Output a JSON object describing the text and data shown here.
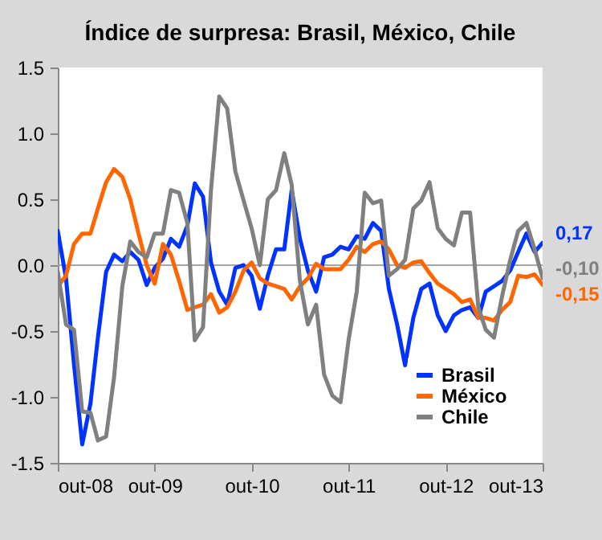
{
  "chart_data": {
    "type": "line",
    "title": "Índice de surpresa: Brasil, México, Chile",
    "x": [
      "2008-10",
      "2008-11",
      "2008-12",
      "2009-01",
      "2009-02",
      "2009-03",
      "2009-04",
      "2009-05",
      "2009-06",
      "2009-07",
      "2009-08",
      "2009-09",
      "2009-10",
      "2009-11",
      "2009-12",
      "2010-01",
      "2010-02",
      "2010-03",
      "2010-04",
      "2010-05",
      "2010-06",
      "2010-07",
      "2010-08",
      "2010-09",
      "2010-10",
      "2010-11",
      "2010-12",
      "2011-01",
      "2011-02",
      "2011-03",
      "2011-04",
      "2011-05",
      "2011-06",
      "2011-07",
      "2011-08",
      "2011-09",
      "2011-10",
      "2011-11",
      "2011-12",
      "2012-01",
      "2012-02",
      "2012-03",
      "2012-04",
      "2012-05",
      "2012-06",
      "2012-07",
      "2012-08",
      "2012-09",
      "2012-10",
      "2012-11",
      "2012-12",
      "2013-01",
      "2013-02",
      "2013-03",
      "2013-04",
      "2013-05",
      "2013-06",
      "2013-07",
      "2013-08",
      "2013-09",
      "2013-10"
    ],
    "series": [
      {
        "name": "Brasil",
        "color": "#0033ff",
        "values": [
          0.26,
          -0.1,
          -0.75,
          -1.36,
          -1.05,
          -0.55,
          -0.05,
          0.08,
          0.03,
          0.1,
          0.04,
          -0.15,
          -0.02,
          0.05,
          0.2,
          0.14,
          0.3,
          0.62,
          0.52,
          0.02,
          -0.2,
          -0.3,
          -0.02,
          0,
          -0.08,
          -0.33,
          -0.08,
          0.12,
          0.12,
          0.57,
          0.2,
          -0.04,
          -0.2,
          0.06,
          0.08,
          0.14,
          0.12,
          0.22,
          0.2,
          0.32,
          0.26,
          -0.18,
          -0.45,
          -0.76,
          -0.4,
          -0.18,
          -0.14,
          -0.38,
          -0.5,
          -0.38,
          -0.34,
          -0.32,
          -0.4,
          -0.2,
          -0.16,
          -0.12,
          -0.04,
          0.1,
          0.24,
          0.1,
          0.17
        ]
      },
      {
        "name": "México",
        "color": "#ff6600",
        "values": [
          -0.16,
          -0.08,
          0.16,
          0.24,
          0.24,
          0.43,
          0.63,
          0.73,
          0.67,
          0.5,
          0.24,
          0,
          -0.14,
          0.16,
          0.08,
          -0.12,
          -0.34,
          -0.32,
          -0.3,
          -0.22,
          -0.36,
          -0.32,
          -0.2,
          -0.04,
          0.02,
          -0.1,
          -0.14,
          -0.16,
          -0.18,
          -0.26,
          -0.16,
          -0.1,
          0.01,
          -0.03,
          -0.03,
          -0.03,
          0.04,
          0.14,
          0.1,
          0.16,
          0.18,
          0.12,
          0,
          -0.02,
          0.02,
          0.03,
          -0.06,
          -0.14,
          -0.18,
          -0.22,
          -0.28,
          -0.26,
          -0.4,
          -0.4,
          -0.42,
          -0.34,
          -0.28,
          -0.08,
          -0.09,
          -0.07,
          -0.15
        ]
      },
      {
        "name": "Chile",
        "color": "#808080",
        "values": [
          -0.05,
          -0.45,
          -0.49,
          -1.11,
          -1.12,
          -1.33,
          -1.3,
          -0.85,
          -0.16,
          0.18,
          0.1,
          0.06,
          0.24,
          0.24,
          0.57,
          0.55,
          0.32,
          -0.57,
          -0.47,
          0.57,
          1.28,
          1.19,
          0.71,
          0.49,
          0.28,
          0,
          0.5,
          0.57,
          0.85,
          0.61,
          -0.12,
          -0.45,
          -0.3,
          -0.83,
          -0.99,
          -1.04,
          -0.57,
          -0.2,
          0.55,
          0.47,
          0.49,
          -0.08,
          -0.03,
          0.04,
          0.43,
          0.49,
          0.63,
          0.28,
          0.2,
          0.15,
          0.4,
          0.4,
          -0.32,
          -0.49,
          -0.55,
          -0.24,
          0.04,
          0.26,
          0.32,
          0.12,
          -0.1
        ]
      }
    ],
    "xlim": [
      "2008-10",
      "2013-10"
    ],
    "xticks": [
      {
        "value": "2008-10",
        "label": "out-08"
      },
      {
        "value": "2009-10",
        "label": "out-09"
      },
      {
        "value": "2010-10",
        "label": "out-10"
      },
      {
        "value": "2011-10",
        "label": "out-11"
      },
      {
        "value": "2012-10",
        "label": "out-12"
      },
      {
        "value": "2013-10",
        "label": "out-13"
      }
    ],
    "ylim": [
      -1.5,
      1.5
    ],
    "yticks": [
      -1.5,
      {
        "value": -1,
        "label": "-1.0"
      },
      -0.5,
      {
        "value": 0,
        "label": "0.0"
      },
      0.5,
      {
        "value": 1,
        "label": "1.0"
      },
      1.5
    ],
    "ref_lines": [
      {
        "axis": "y",
        "value": 0,
        "color": "#a6a6a6"
      }
    ],
    "annotations": [
      {
        "text": "0,17",
        "x": "2013-10",
        "y": 0.17
      },
      {
        "text": "-0,10",
        "x": "2013-10",
        "y": -0.1
      },
      {
        "text": "-0,15",
        "x": "2013-10",
        "y": -0.15
      }
    ],
    "legend": "bottom right",
    "grid": false,
    "line_style": "solid",
    "marker": "none"
  }
}
